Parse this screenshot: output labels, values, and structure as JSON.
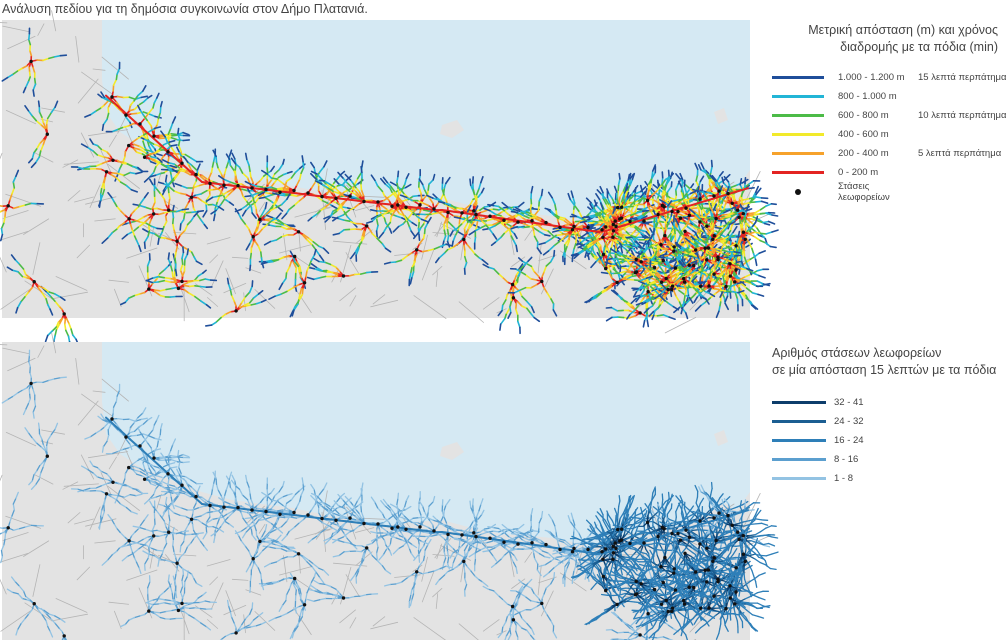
{
  "title": "Ανάλυση πεδίου για τη δημόσια συγκοινωνία στον Δήμο Πλατανιά.",
  "top_map": {
    "legend_title_line1": "Μετρική απόσταση (m) και χρόνος",
    "legend_title_line2": "διαδρομής με τα πόδια (min)",
    "entries": [
      {
        "range": "1.000 - 1.200 m",
        "walk": "15 λεπτά περπάτημα",
        "color": "#1f4e9a"
      },
      {
        "range": "800 - 1.000 m",
        "walk": "",
        "color": "#22b5d6"
      },
      {
        "range": "600 - 800 m",
        "walk": "10 λεπτά περπάτημα",
        "color": "#4cbb47"
      },
      {
        "range": "400 - 600 m",
        "walk": "",
        "color": "#f2ea2a"
      },
      {
        "range": "200 - 400 m",
        "walk": "5 λεπτά περπάτημα",
        "color": "#f6a22b"
      },
      {
        "range": "0 - 200 m",
        "walk": "",
        "color": "#e32422"
      }
    ],
    "stops_label": "Στάσεις λεωφορείων"
  },
  "bottom_map": {
    "legend_title_line1": "Αριθμός στάσεων λεωφορείων",
    "legend_title_line2": "σε μία απόσταση 15 λεπτών με τα πόδια",
    "entries": [
      {
        "range": "32 - 41",
        "color": "#0d3d6b"
      },
      {
        "range": "24 - 32",
        "color": "#1b5e92"
      },
      {
        "range": "16 - 24",
        "color": "#2e7fb8"
      },
      {
        "range": "8 - 16",
        "color": "#5b9fcf"
      },
      {
        "range": "1 - 8",
        "color": "#93c3e3"
      }
    ]
  },
  "colors": {
    "sea": "#d5e9f3",
    "land": "#e3e3e3",
    "road": "#b5b5b5",
    "stop": "#111111"
  }
}
